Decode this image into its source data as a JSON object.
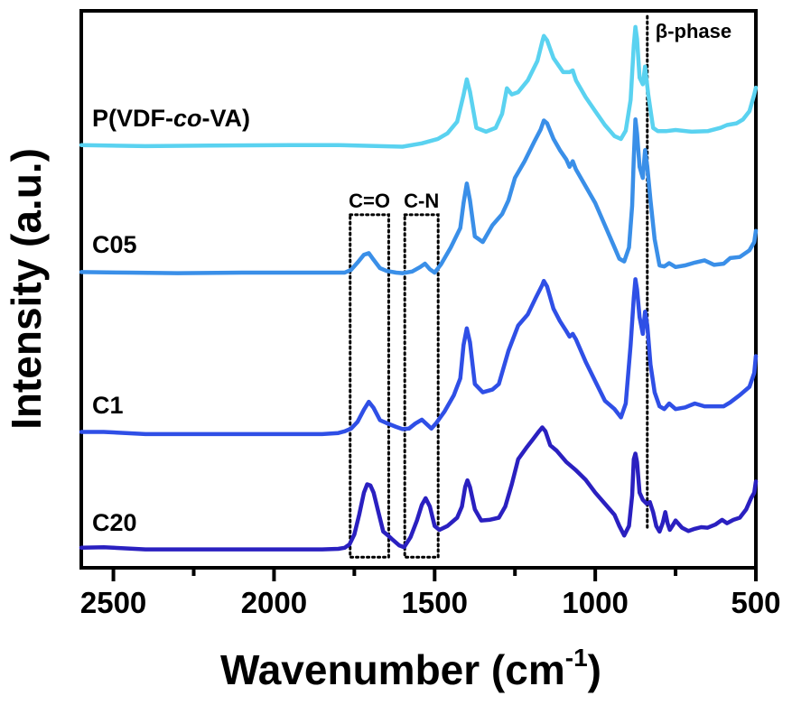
{
  "chart_data": {
    "type": "line",
    "title": "",
    "xlabel": "Wavenumber (cm",
    "xlabel_superscript": "-1",
    "xlabel_suffix": ")",
    "ylabel": "Intensity (a.u.)",
    "xlim": [
      2600,
      500
    ],
    "x_reversed": true,
    "ylim": [
      0,
      100
    ],
    "x_ticks": [
      2500,
      2250,
      2000,
      1750,
      1500,
      1250,
      1000,
      750,
      500
    ],
    "x_tick_labels": [
      "2500",
      "2000",
      "1500",
      "1000",
      "500"
    ],
    "x_tick_label_values": [
      2500,
      2000,
      1500,
      1000,
      500
    ],
    "y_ticks": [],
    "grid": false,
    "legend": "inline-labels-left",
    "series": [
      {
        "name": "P(VDF-co-VA)",
        "label_parts": [
          "P(VDF-",
          "co",
          "-VA)"
        ],
        "color": "#5ad2f0",
        "x": [
          2600,
          2400,
          2200,
          1950,
          1800,
          1600,
          1540,
          1490,
          1460,
          1430,
          1410,
          1400,
          1390,
          1370,
          1340,
          1310,
          1290,
          1275,
          1260,
          1240,
          1210,
          1180,
          1165,
          1160,
          1150,
          1130,
          1100,
          1080,
          1070,
          1060,
          1030,
          1000,
          970,
          940,
          920,
          905,
          890,
          880,
          875,
          870,
          862,
          852,
          845,
          835,
          820,
          805,
          780,
          750,
          700,
          650,
          610,
          590,
          560,
          540,
          520,
          505,
          500
        ],
        "y": [
          75.9,
          75.7,
          75.8,
          75.9,
          75.9,
          75.6,
          76.2,
          77.0,
          78.0,
          80.1,
          84.9,
          87.7,
          85.5,
          79.0,
          78.3,
          79.0,
          81.5,
          86.1,
          85.0,
          85.4,
          87.5,
          91.0,
          94.5,
          95.5,
          94.7,
          91.5,
          89.0,
          89.0,
          89.3,
          87.5,
          84.5,
          82.0,
          79.5,
          77.5,
          77.0,
          78.5,
          84.0,
          93.8,
          97.1,
          95.0,
          88.0,
          86.8,
          90.0,
          85.0,
          79.0,
          78.4,
          78.4,
          78.6,
          78.3,
          78.4,
          79.0,
          79.5,
          79.8,
          80.5,
          82.0,
          85.0,
          86.2
        ]
      },
      {
        "name": "C05",
        "color": "#3a8fe8",
        "x": [
          2600,
          2450,
          2300,
          2100,
          1900,
          1780,
          1760,
          1740,
          1720,
          1705,
          1690,
          1670,
          1650,
          1620,
          1600,
          1570,
          1545,
          1530,
          1515,
          1500,
          1480,
          1450,
          1420,
          1410,
          1400,
          1390,
          1375,
          1350,
          1320,
          1290,
          1270,
          1250,
          1220,
          1190,
          1170,
          1160,
          1150,
          1130,
          1110,
          1090,
          1080,
          1070,
          1060,
          1030,
          1000,
          970,
          940,
          925,
          910,
          895,
          885,
          880,
          875,
          870,
          862,
          852,
          845,
          838,
          828,
          815,
          800,
          785,
          770,
          750,
          720,
          690,
          660,
          630,
          600,
          580,
          550,
          520,
          505,
          500
        ],
        "y": [
          53.1,
          53.0,
          52.9,
          53.0,
          53.0,
          53.0,
          53.5,
          54.8,
          56.2,
          56.5,
          55.3,
          53.8,
          53.3,
          53.0,
          52.9,
          53.2,
          54.0,
          54.6,
          53.6,
          53.0,
          54.5,
          57.5,
          61.0,
          65.5,
          69.0,
          66.0,
          59.5,
          58.5,
          61.5,
          63.5,
          66.0,
          70.0,
          73.0,
          76.5,
          78.7,
          80.3,
          79.8,
          77.0,
          75.0,
          73.3,
          72.0,
          73.0,
          71.5,
          68.5,
          65.5,
          61.5,
          57.5,
          55.5,
          55.0,
          57.5,
          65.0,
          73.5,
          80.5,
          78.0,
          72.0,
          70.0,
          75.0,
          72.0,
          66.0,
          59.0,
          54.3,
          54.1,
          54.7,
          54.0,
          54.3,
          54.8,
          55.2,
          54.4,
          54.6,
          55.6,
          55.8,
          57.0,
          58.5,
          60.5
        ]
      },
      {
        "name": "C1",
        "color": "#2f4fe6",
        "x": [
          2600,
          2530,
          2400,
          2200,
          2000,
          1850,
          1800,
          1780,
          1760,
          1740,
          1720,
          1705,
          1690,
          1670,
          1650,
          1620,
          1600,
          1580,
          1560,
          1540,
          1525,
          1510,
          1495,
          1470,
          1440,
          1420,
          1410,
          1400,
          1390,
          1375,
          1350,
          1320,
          1300,
          1270,
          1240,
          1210,
          1185,
          1165,
          1160,
          1150,
          1130,
          1110,
          1090,
          1080,
          1070,
          1060,
          1030,
          1000,
          970,
          940,
          920,
          905,
          890,
          880,
          875,
          870,
          862,
          852,
          845,
          838,
          828,
          815,
          800,
          785,
          770,
          750,
          720,
          690,
          660,
          630,
          600,
          580,
          550,
          520,
          505,
          500
        ],
        "y": [
          24.4,
          24.4,
          24.0,
          24.0,
          24.0,
          24.0,
          24.2,
          24.5,
          25.0,
          26.2,
          28.4,
          29.8,
          28.7,
          26.5,
          26.0,
          25.3,
          24.9,
          25.0,
          25.9,
          26.6,
          25.8,
          25.0,
          26.0,
          28.0,
          31.0,
          34.0,
          40.0,
          43.0,
          40.5,
          33.0,
          31.5,
          32.0,
          33.0,
          39.0,
          43.5,
          45.5,
          48.5,
          50.8,
          51.5,
          50.5,
          46.5,
          44.3,
          42.5,
          41.5,
          42.0,
          41.0,
          37.0,
          33.5,
          30.0,
          28.5,
          27.0,
          29.5,
          40.0,
          48.5,
          51.8,
          50.0,
          45.0,
          42.0,
          46.0,
          43.5,
          36.5,
          31.5,
          29.0,
          28.5,
          29.5,
          28.5,
          28.8,
          29.5,
          29.0,
          29.0,
          29.0,
          29.7,
          31.0,
          32.5,
          35.0,
          38.0
        ]
      },
      {
        "name": "C20",
        "color": "#2a20c0",
        "x": [
          2600,
          2530,
          2400,
          2200,
          2000,
          1850,
          1800,
          1780,
          1765,
          1750,
          1735,
          1720,
          1710,
          1700,
          1690,
          1675,
          1660,
          1645,
          1630,
          1610,
          1595,
          1575,
          1555,
          1540,
          1528,
          1515,
          1500,
          1485,
          1460,
          1430,
          1415,
          1405,
          1398,
          1390,
          1375,
          1355,
          1330,
          1300,
          1280,
          1260,
          1240,
          1215,
          1195,
          1175,
          1165,
          1155,
          1140,
          1120,
          1090,
          1060,
          1030,
          1000,
          970,
          940,
          925,
          910,
          895,
          885,
          880,
          875,
          870,
          862,
          852,
          840,
          830,
          820,
          810,
          800,
          790,
          782,
          775,
          768,
          760,
          750,
          730,
          710,
          690,
          670,
          650,
          625,
          605,
          590,
          570,
          550,
          530,
          515,
          505,
          500
        ],
        "y": [
          3.6,
          3.7,
          3.3,
          3.3,
          3.3,
          3.3,
          3.4,
          3.6,
          4.2,
          6.0,
          9.5,
          13.5,
          15.0,
          14.8,
          13.5,
          10.0,
          6.5,
          5.8,
          5.0,
          4.0,
          3.7,
          5.5,
          8.5,
          11.3,
          12.5,
          11.0,
          7.5,
          6.8,
          7.5,
          9.0,
          11.0,
          14.5,
          15.7,
          14.5,
          10.5,
          8.5,
          8.6,
          9.0,
          11.0,
          15.0,
          19.5,
          21.5,
          23.0,
          24.5,
          25.2,
          24.5,
          22.0,
          21.0,
          19.0,
          17.5,
          15.8,
          13.5,
          11.5,
          9.5,
          7.5,
          5.8,
          7.5,
          13.0,
          19.5,
          20.5,
          19.0,
          13.5,
          12.2,
          11.5,
          11.8,
          10.0,
          7.5,
          6.5,
          8.0,
          10.0,
          8.0,
          6.8,
          7.5,
          8.5,
          7.2,
          6.6,
          7.0,
          7.3,
          7.2,
          7.8,
          8.6,
          8.0,
          8.6,
          9.0,
          10.5,
          12.5,
          13.5,
          15.5
        ]
      }
    ],
    "annotations": [
      {
        "type": "dotted-box",
        "label": "C=O",
        "x_range": [
          1763,
          1643
        ],
        "y_range": [
          1.9,
          63.4
        ]
      },
      {
        "type": "dotted-box",
        "label": "C-N",
        "x_range": [
          1593,
          1489
        ],
        "y_range": [
          1.9,
          63.4
        ]
      },
      {
        "type": "dotted-vline",
        "label": "β-phase",
        "x": 838,
        "y_range": [
          6.8,
          99.0
        ]
      }
    ]
  }
}
